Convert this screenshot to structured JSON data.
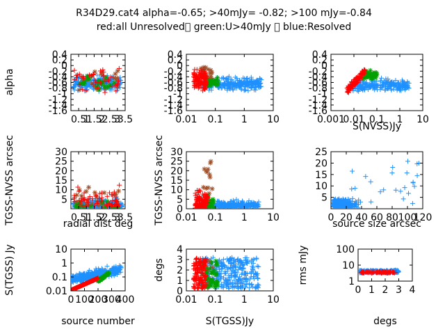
{
  "title_line1": "R34D29.cat4 alpha=-0.65; >40mJy= -0.82; >100 mJy=-0.84",
  "title_line2": "red:all Unresolved\u0000 green:U>40mJy \u0000 blue:Resolved",
  "colors": {
    "red": "#ff0000",
    "green": "#00a000",
    "blue": "#1e90ff",
    "brown": "#a0522d"
  },
  "chart_data": [
    {
      "id": "p1",
      "type": "scatter",
      "title": "",
      "xlabel": "",
      "ylabel": "alpha",
      "xscale": "linear",
      "yscale": "linear",
      "xlim": [
        0,
        3.5
      ],
      "ylim": [
        -1.6,
        0.4
      ],
      "xticks": [
        "0.5",
        "1",
        "1.5",
        "2",
        "2.5",
        "3",
        "3.5"
      ],
      "xtick_values": [
        0.5,
        1,
        1.5,
        2,
        2.5,
        3,
        3.5
      ],
      "yticks": [
        "-1.6",
        "-1.4",
        "-1.2",
        "-1",
        "-0.8",
        "-0.6",
        "-0.4",
        "-0.2",
        "0",
        "0.2",
        "0.4"
      ],
      "ytick_values": [
        -1.6,
        -1.4,
        -1.2,
        -1,
        -0.8,
        -0.6,
        -0.4,
        -0.2,
        0,
        0.2,
        0.4
      ]
    },
    {
      "id": "p2",
      "type": "scatter",
      "title": "",
      "xlabel": "",
      "ylabel": "",
      "xscale": "log",
      "yscale": "linear",
      "xlim": [
        0.01,
        10
      ],
      "ylim": [
        -1.6,
        0.4
      ],
      "xticks": [
        "0.01",
        "0.1",
        "1",
        "10"
      ],
      "xtick_values": [
        0.01,
        0.1,
        1,
        10
      ],
      "yticks": [
        "-1.6",
        "-1.4",
        "-1.2",
        "-1",
        "-0.8",
        "-0.6",
        "-0.4",
        "-0.2",
        "0",
        "0.2",
        "0.4"
      ],
      "ytick_values": [
        -1.6,
        -1.4,
        -1.2,
        -1,
        -0.8,
        -0.6,
        -0.4,
        -0.2,
        0,
        0.2,
        0.4
      ]
    },
    {
      "id": "p3",
      "type": "scatter",
      "title": "",
      "xlabel": "S(NVSS)Jy",
      "ylabel": "",
      "xscale": "log",
      "yscale": "linear",
      "xlim": [
        0.001,
        10
      ],
      "ylim": [
        -1.6,
        0.4
      ],
      "xticks": [
        "0.001",
        "0.01",
        "0.1",
        "1",
        "10"
      ],
      "xtick_values": [
        0.001,
        0.01,
        0.1,
        1,
        10
      ],
      "yticks": [
        "-1.6",
        "-1.4",
        "-1.2",
        "-1",
        "-0.8",
        "-0.6",
        "-0.4",
        "-0.2",
        "0",
        "0.2",
        "0.4"
      ],
      "ytick_values": [
        -1.6,
        -1.4,
        -1.2,
        -1,
        -0.8,
        -0.6,
        -0.4,
        -0.2,
        0,
        0.2,
        0.4
      ]
    },
    {
      "id": "p4",
      "type": "scatter",
      "title": "",
      "xlabel": "radial dist deg",
      "ylabel": "TGSS-NVSS arcsec",
      "xscale": "linear",
      "yscale": "linear",
      "xlim": [
        0,
        3.5
      ],
      "ylim": [
        0,
        30
      ],
      "xticks": [
        "0.5",
        "1",
        "1.5",
        "2",
        "2.5",
        "3",
        "3.5"
      ],
      "xtick_values": [
        0.5,
        1,
        1.5,
        2,
        2.5,
        3,
        3.5
      ],
      "yticks": [
        "5",
        "10",
        "15",
        "20",
        "25",
        "30"
      ],
      "ytick_values": [
        5,
        10,
        15,
        20,
        25,
        30
      ]
    },
    {
      "id": "p5",
      "type": "scatter",
      "title": "",
      "xlabel": "",
      "ylabel": "TGSS-NVSS arcsec",
      "xscale": "log",
      "yscale": "linear",
      "xlim": [
        0.01,
        10
      ],
      "ylim": [
        0,
        30
      ],
      "xticks": [
        "0.01",
        "0.1",
        "1",
        "10"
      ],
      "xtick_values": [
        0.01,
        0.1,
        1,
        10
      ],
      "yticks": [
        "0",
        "5",
        "10",
        "15",
        "20",
        "25",
        "30"
      ],
      "ytick_values": [
        0,
        5,
        10,
        15,
        20,
        25,
        30
      ]
    },
    {
      "id": "p6",
      "type": "scatter",
      "title": "",
      "xlabel": "source size arcsec",
      "ylabel": "",
      "xscale": "linear",
      "yscale": "linear",
      "xlim": [
        0,
        120
      ],
      "ylim": [
        0,
        25
      ],
      "xticks": [
        "0",
        "20",
        "40",
        "60",
        "80",
        "100",
        "120"
      ],
      "xtick_values": [
        0,
        20,
        40,
        60,
        80,
        100,
        120
      ],
      "yticks": [
        "5",
        "10",
        "15",
        "20",
        "25"
      ],
      "ytick_values": [
        5,
        10,
        15,
        20,
        25
      ]
    },
    {
      "id": "p7",
      "type": "scatter",
      "title": "",
      "xlabel": "source number",
      "ylabel": "S(TGSS) Jy",
      "xscale": "linear",
      "yscale": "log",
      "xlim": [
        0,
        400
      ],
      "ylim": [
        0.01,
        10
      ],
      "xticks": [
        "0",
        "100",
        "200",
        "300",
        "400"
      ],
      "xtick_values": [
        0,
        100,
        200,
        300,
        400
      ],
      "yticks": [
        "0.01",
        "0.1",
        "1",
        "10"
      ],
      "ytick_values": [
        0.01,
        0.1,
        1,
        10
      ]
    },
    {
      "id": "p8",
      "type": "scatter",
      "title": "",
      "xlabel": "S(TGSS)Jy",
      "ylabel": "degs",
      "xscale": "log",
      "yscale": "linear",
      "xlim": [
        0.01,
        10
      ],
      "ylim": [
        0,
        4
      ],
      "xticks": [
        "0.01",
        "0.1",
        "1",
        "10"
      ],
      "xtick_values": [
        0.01,
        0.1,
        1,
        10
      ],
      "yticks": [
        "0",
        "1",
        "2",
        "3",
        "4"
      ],
      "ytick_values": [
        0,
        1,
        2,
        3,
        4
      ]
    },
    {
      "id": "p9",
      "type": "scatter",
      "title": "",
      "xlabel": "degs",
      "ylabel": "rms mJy",
      "xscale": "linear",
      "yscale": "log",
      "xlim": [
        0,
        4
      ],
      "ylim": [
        1,
        100
      ],
      "xticks": [
        "0",
        "1",
        "2",
        "3",
        "4"
      ],
      "xtick_values": [
        0,
        1,
        2,
        3,
        4
      ],
      "yticks": [
        "1",
        "10",
        "100"
      ],
      "ytick_values": [
        1,
        10,
        100
      ]
    }
  ]
}
